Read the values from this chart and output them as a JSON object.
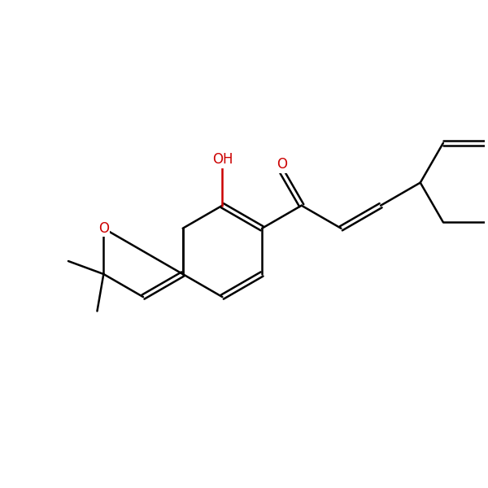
{
  "background": "#ffffff",
  "bond_color": "#000000",
  "hetero_color": "#cc0000",
  "lw": 1.8,
  "figsize": [
    6.0,
    6.0
  ],
  "dpi": 100,
  "xlim": [
    0,
    10
  ],
  "ylim": [
    0,
    10
  ]
}
